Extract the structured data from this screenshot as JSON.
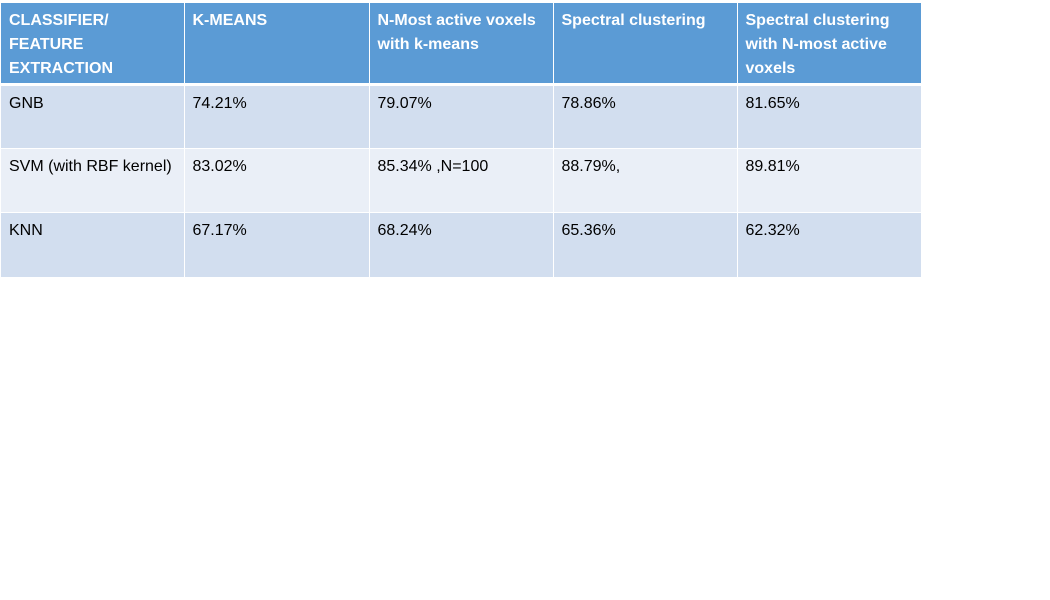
{
  "table": {
    "headers": [
      "CLASSIFIER/ FEATURE EXTRACTION",
      "K-MEANS",
      "N-Most active voxels with k-means",
      "Spectral clustering",
      "Spectral clustering with N-most active voxels"
    ],
    "rows": [
      [
        "GNB",
        "74.21%",
        "79.07%",
        "78.86%",
        "81.65%"
      ],
      [
        "SVM (with RBF kernel)",
        "83.02%",
        "85.34% ,N=100",
        "88.79%,",
        "89.81%"
      ],
      [
        "KNN",
        "67.17%",
        "68.24%",
        "65.36%",
        "62.32%"
      ]
    ]
  },
  "colors": {
    "header_bg": "#5b9bd5",
    "row_odd_bg": "#d2deef",
    "row_even_bg": "#eaeff7"
  }
}
